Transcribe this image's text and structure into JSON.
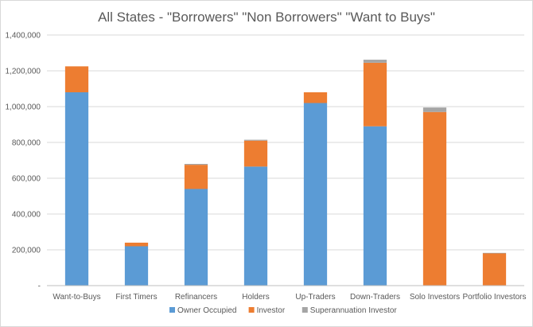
{
  "chart_data": {
    "type": "bar",
    "stacked": true,
    "title": "All States - \"Borrowers\" \"Non Borrowers\" \"Want to Buys\"",
    "xlabel": "",
    "ylabel": "",
    "ylim": [
      0,
      1400000
    ],
    "y_ticks": [
      0,
      200000,
      400000,
      600000,
      800000,
      1000000,
      1200000,
      1400000
    ],
    "y_tick_labels": [
      "-",
      "200,000",
      "400,000",
      "600,000",
      "800,000",
      "1,000,000",
      "1,200,000",
      "1,400,000"
    ],
    "grid": true,
    "legend_position": "bottom",
    "categories": [
      "Want-to-Buys",
      "First Timers",
      "Refinancers",
      "Holders",
      "Up-Traders",
      "Down-Traders",
      "Solo Investors",
      "Portfolio Investors"
    ],
    "series": [
      {
        "name": "Owner Occupied",
        "color": "#5b9bd5",
        "values": [
          1080000,
          220000,
          540000,
          665000,
          1020000,
          890000,
          0,
          0
        ]
      },
      {
        "name": "Investor",
        "color": "#ed7d31",
        "values": [
          145000,
          20000,
          135000,
          145000,
          60000,
          355000,
          970000,
          180000
        ]
      },
      {
        "name": "Superannuation Investor",
        "color": "#a5a5a5",
        "values": [
          0,
          0,
          5000,
          5000,
          0,
          17000,
          25000,
          3000
        ]
      }
    ]
  }
}
